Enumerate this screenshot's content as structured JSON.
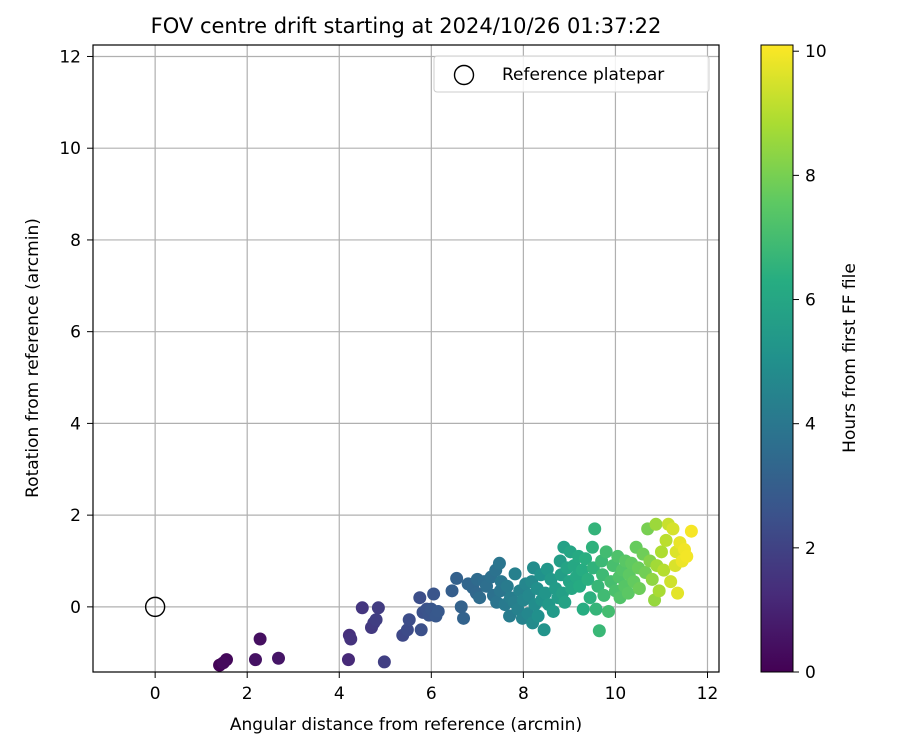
{
  "chart_data": {
    "type": "scatter",
    "title": "FOV centre drift starting at 2024/10/26 01:37:22",
    "xlabel": "Angular distance from reference (arcmin)",
    "ylabel": "Rotation from reference (arcmin)",
    "xlim": [
      -1.35,
      12.25
    ],
    "ylim": [
      -1.42,
      12.25
    ],
    "xticks": [
      "0",
      "2",
      "4",
      "6",
      "8",
      "10",
      "12"
    ],
    "yticks": [
      "0",
      "2",
      "4",
      "6",
      "8",
      "10",
      "12"
    ],
    "grid": true,
    "legend": {
      "location": "top-right",
      "entries": [
        "Reference platepar"
      ]
    },
    "reference_point": {
      "label": "Reference platepar",
      "x": 0,
      "y": 0,
      "marker": "open-circle"
    },
    "colorbar": {
      "label": "Hours from first FF file",
      "colormap": "viridis",
      "range": [
        0,
        10.1
      ],
      "ticks": [
        "0",
        "2",
        "4",
        "6",
        "8",
        "10"
      ]
    },
    "series": [
      {
        "marker": "filled-circle",
        "color_by": "hours",
        "points": [
          [
            1.4,
            -1.27,
            0.1
          ],
          [
            1.55,
            -1.15,
            0.2
          ],
          [
            1.48,
            -1.22,
            0.25
          ],
          [
            2.28,
            -0.7,
            0.4
          ],
          [
            2.18,
            -1.15,
            0.5
          ],
          [
            2.68,
            -1.12,
            0.6
          ],
          [
            4.2,
            -1.15,
            1.2
          ],
          [
            4.22,
            -0.62,
            1.4
          ],
          [
            4.25,
            -0.7,
            1.5
          ],
          [
            4.5,
            -0.02,
            1.6
          ],
          [
            4.7,
            -0.45,
            1.7
          ],
          [
            4.75,
            -0.35,
            1.75
          ],
          [
            4.85,
            -0.02,
            1.8
          ],
          [
            4.8,
            -0.28,
            1.85
          ],
          [
            4.98,
            -1.2,
            1.9
          ],
          [
            5.38,
            -0.62,
            2.2
          ],
          [
            5.48,
            -0.5,
            2.3
          ],
          [
            5.52,
            -0.28,
            2.35
          ],
          [
            5.75,
            0.2,
            2.4
          ],
          [
            5.78,
            -0.5,
            2.45
          ],
          [
            5.82,
            -0.12,
            2.5
          ],
          [
            5.9,
            -0.05,
            2.55
          ],
          [
            5.95,
            -0.18,
            2.6
          ],
          [
            6.05,
            0.28,
            2.65
          ],
          [
            6.0,
            -0.05,
            2.7
          ],
          [
            6.1,
            -0.2,
            2.75
          ],
          [
            6.15,
            -0.1,
            2.8
          ],
          [
            6.45,
            0.35,
            3.0
          ],
          [
            6.55,
            0.62,
            3.1
          ],
          [
            6.65,
            0.0,
            3.15
          ],
          [
            6.7,
            -0.25,
            3.2
          ],
          [
            6.8,
            0.5,
            3.3
          ],
          [
            6.9,
            0.42,
            3.35
          ],
          [
            6.98,
            0.3,
            3.4
          ],
          [
            7.0,
            0.6,
            3.5
          ],
          [
            7.05,
            0.2,
            3.55
          ],
          [
            7.15,
            0.55,
            3.6
          ],
          [
            7.2,
            0.45,
            3.65
          ],
          [
            7.3,
            0.65,
            3.7
          ],
          [
            7.35,
            0.25,
            3.75
          ],
          [
            7.4,
            0.8,
            3.8
          ],
          [
            7.42,
            0.1,
            3.85
          ],
          [
            7.48,
            0.95,
            3.9
          ],
          [
            7.5,
            0.35,
            3.95
          ],
          [
            7.52,
            0.55,
            4.0
          ],
          [
            7.6,
            0.05,
            4.1
          ],
          [
            7.65,
            0.45,
            4.15
          ],
          [
            7.7,
            -0.2,
            4.2
          ],
          [
            7.72,
            0.2,
            4.25
          ],
          [
            7.8,
            0.1,
            4.3
          ],
          [
            7.82,
            0.72,
            4.35
          ],
          [
            7.88,
            -0.05,
            4.4
          ],
          [
            7.92,
            0.35,
            4.45
          ],
          [
            7.98,
            -0.25,
            4.5
          ],
          [
            8.0,
            0.15,
            4.55
          ],
          [
            8.05,
            0.5,
            4.6
          ],
          [
            8.1,
            -0.15,
            4.65
          ],
          [
            8.12,
            0.25,
            4.7
          ],
          [
            8.18,
            0.55,
            4.75
          ],
          [
            8.2,
            -0.35,
            4.8
          ],
          [
            8.22,
            0.85,
            4.85
          ],
          [
            8.25,
            0.05,
            4.9
          ],
          [
            8.3,
            0.4,
            4.95
          ],
          [
            8.32,
            -0.2,
            5.0
          ],
          [
            8.38,
            0.7,
            5.1
          ],
          [
            8.4,
            0.15,
            5.15
          ],
          [
            8.45,
            -0.5,
            5.2
          ],
          [
            8.48,
            0.3,
            5.25
          ],
          [
            8.52,
            0.82,
            5.3
          ],
          [
            8.55,
            0.05,
            5.35
          ],
          [
            8.6,
            0.6,
            5.4
          ],
          [
            8.65,
            -0.1,
            5.45
          ],
          [
            8.7,
            0.4,
            5.5
          ],
          [
            8.75,
            0.2,
            5.55
          ],
          [
            8.8,
            1.0,
            5.6
          ],
          [
            8.82,
            0.7,
            5.65
          ],
          [
            8.85,
            0.3,
            5.7
          ],
          [
            8.88,
            1.3,
            5.75
          ],
          [
            8.9,
            0.1,
            5.8
          ],
          [
            8.95,
            0.85,
            5.85
          ],
          [
            9.0,
            0.55,
            5.9
          ],
          [
            9.02,
            1.2,
            5.95
          ],
          [
            9.05,
            0.4,
            6.0
          ],
          [
            9.1,
            0.9,
            6.05
          ],
          [
            9.15,
            0.65,
            6.1
          ],
          [
            9.2,
            1.1,
            6.15
          ],
          [
            9.22,
            0.45,
            6.2
          ],
          [
            9.28,
            0.8,
            6.25
          ],
          [
            9.3,
            -0.05,
            6.3
          ],
          [
            9.35,
            1.05,
            6.35
          ],
          [
            9.4,
            0.6,
            6.4
          ],
          [
            9.45,
            0.2,
            6.45
          ],
          [
            9.5,
            1.3,
            6.5
          ],
          [
            9.52,
            0.85,
            6.55
          ],
          [
            9.55,
            1.7,
            6.6
          ],
          [
            9.58,
            -0.05,
            6.65
          ],
          [
            9.62,
            0.45,
            6.7
          ],
          [
            9.65,
            -0.52,
            6.75
          ],
          [
            9.7,
            1.0,
            6.8
          ],
          [
            9.72,
            0.7,
            6.85
          ],
          [
            9.75,
            0.25,
            6.9
          ],
          [
            9.8,
            1.2,
            6.95
          ],
          [
            9.85,
            -0.1,
            7.0
          ],
          [
            9.9,
            0.55,
            7.05
          ],
          [
            9.95,
            0.9,
            7.1
          ],
          [
            10.0,
            0.35,
            7.15
          ],
          [
            10.05,
            1.1,
            7.2
          ],
          [
            10.08,
            0.65,
            7.25
          ],
          [
            10.1,
            0.2,
            7.3
          ],
          [
            10.15,
            0.8,
            7.35
          ],
          [
            10.2,
            0.45,
            7.4
          ],
          [
            10.22,
            1.0,
            7.45
          ],
          [
            10.28,
            0.3,
            7.5
          ],
          [
            10.3,
            0.7,
            7.55
          ],
          [
            10.35,
            0.95,
            7.6
          ],
          [
            10.4,
            0.55,
            7.65
          ],
          [
            10.45,
            1.3,
            7.7
          ],
          [
            10.5,
            0.85,
            7.75
          ],
          [
            10.52,
            0.4,
            7.8
          ],
          [
            10.6,
            1.15,
            7.85
          ],
          [
            10.65,
            0.75,
            7.9
          ],
          [
            10.7,
            1.7,
            8.0
          ],
          [
            10.75,
            1.0,
            8.2
          ],
          [
            10.8,
            0.6,
            8.4
          ],
          [
            10.85,
            0.15,
            8.5
          ],
          [
            10.88,
            1.8,
            8.6
          ],
          [
            10.9,
            0.9,
            8.7
          ],
          [
            10.95,
            0.35,
            8.8
          ],
          [
            11.0,
            1.2,
            8.9
          ],
          [
            11.05,
            0.8,
            9.0
          ],
          [
            11.1,
            1.45,
            9.1
          ],
          [
            11.15,
            1.8,
            9.3
          ],
          [
            11.2,
            0.55,
            9.4
          ],
          [
            11.25,
            1.7,
            9.5
          ],
          [
            11.3,
            0.9,
            9.55
          ],
          [
            11.32,
            1.2,
            9.6
          ],
          [
            11.35,
            0.3,
            9.7
          ],
          [
            11.4,
            1.4,
            9.8
          ],
          [
            11.45,
            1.0,
            9.85
          ],
          [
            11.5,
            1.25,
            9.9
          ],
          [
            11.55,
            1.1,
            9.95
          ],
          [
            11.65,
            1.65,
            10.0
          ]
        ]
      }
    ]
  }
}
